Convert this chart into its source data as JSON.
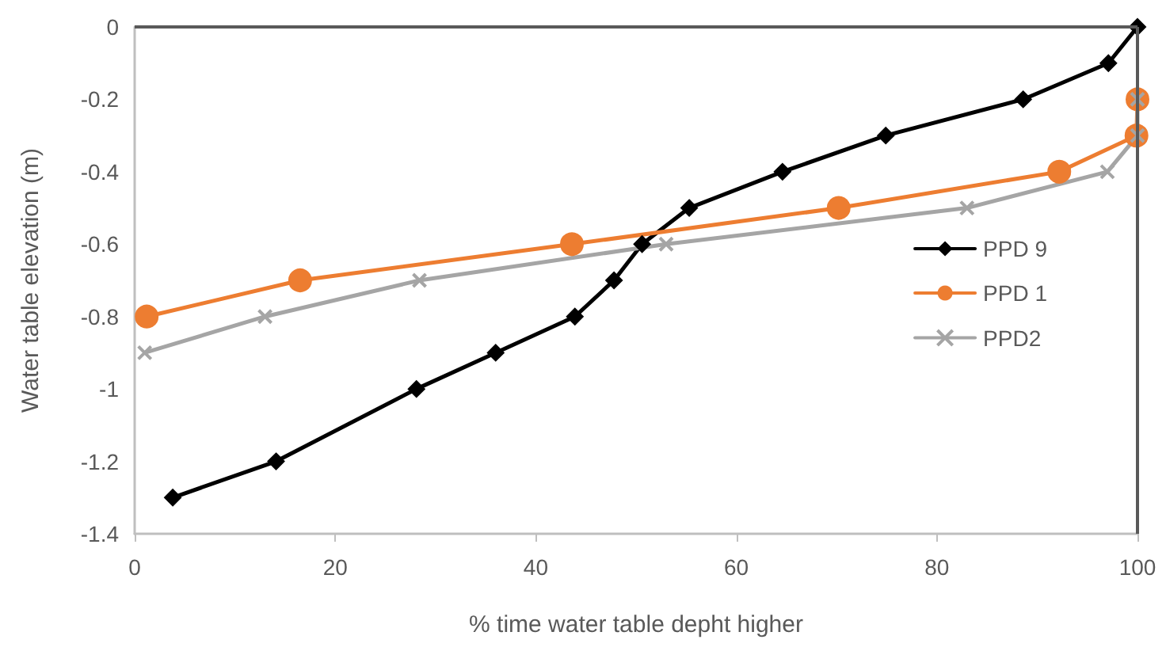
{
  "chart_data": {
    "type": "line",
    "xlabel": "% time water table depht higher",
    "ylabel": "Water table elevation (m)",
    "xlim": [
      0,
      100
    ],
    "xticks": [
      0,
      20,
      40,
      60,
      80,
      100
    ],
    "ylim": [
      -1.4,
      0
    ],
    "yticks": [
      -1.4,
      -1.2,
      -1,
      -0.8,
      -0.6,
      -0.4,
      -0.2,
      0
    ],
    "grid": false,
    "legend": "right",
    "series": [
      {
        "name": "PPD 9",
        "color": "#000000",
        "marker": "diamond",
        "x": [
          3.8,
          14.1,
          28.1,
          36,
          43.9,
          47.8,
          50.6,
          55.3,
          64.6,
          74.9,
          88.6,
          97.1,
          100
        ],
        "values": [
          -1.3,
          -1.2,
          -1,
          -0.9,
          -0.8,
          -0.7,
          -0.6,
          -0.5,
          -0.4,
          -0.3,
          -0.2,
          -0.1,
          0
        ]
      },
      {
        "name": "PPD 1",
        "color": "#ed7d31",
        "marker": "circle",
        "x": [
          1.2,
          16.5,
          43.6,
          70.2,
          92.2,
          99.9,
          100
        ],
        "values": [
          -0.8,
          -0.7,
          -0.6,
          -0.5,
          -0.4,
          -0.3,
          -0.2
        ]
      },
      {
        "name": "PPD2",
        "color": "#a5a5a5",
        "marker": "cross",
        "x": [
          1,
          13,
          28.4,
          53,
          83,
          97,
          100,
          100
        ],
        "values": [
          -0.9,
          -0.8,
          -0.7,
          -0.6,
          -0.5,
          -0.4,
          -0.3,
          -0.2
        ]
      }
    ]
  }
}
